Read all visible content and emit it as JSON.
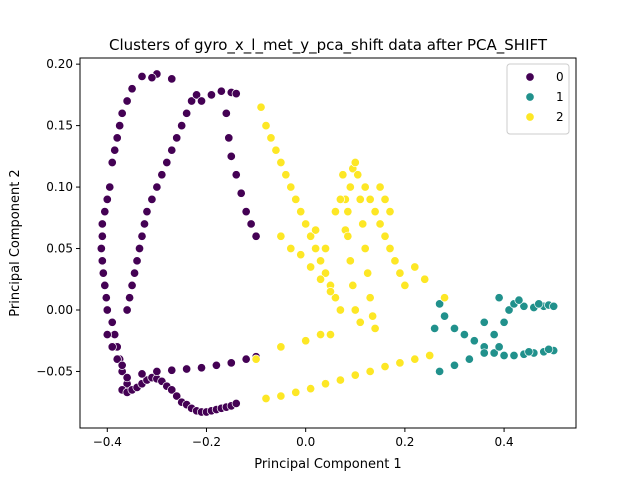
{
  "chart_data": {
    "type": "scatter",
    "title": "Clusters of gyro_x_l_met_y_pca_shift data after PCA_SHIFT",
    "xlabel": "Principal Component 1",
    "ylabel": "Principal Component 2",
    "xlim": [
      -0.455,
      0.545
    ],
    "ylim": [
      -0.096,
      0.205
    ],
    "xticks": [
      -0.4,
      -0.2,
      0.0,
      0.2,
      0.4
    ],
    "xtick_labels": [
      "−0.4",
      "−0.2",
      "0.0",
      "0.2",
      "0.4"
    ],
    "yticks": [
      -0.05,
      0.0,
      0.05,
      0.1,
      0.15,
      0.2
    ],
    "ytick_labels": [
      "−0.05",
      "0.00",
      "0.05",
      "0.10",
      "0.15",
      "0.20"
    ],
    "grid": false,
    "legend": {
      "position": "top-right"
    },
    "series": [
      {
        "name": "0",
        "color": "#440154",
        "points": [
          [
            -0.33,
            0.19
          ],
          [
            -0.3,
            0.192
          ],
          [
            -0.27,
            0.188
          ],
          [
            -0.31,
            0.189
          ],
          [
            -0.35,
            0.18
          ],
          [
            -0.36,
            0.17
          ],
          [
            -0.37,
            0.16
          ],
          [
            -0.375,
            0.15
          ],
          [
            -0.38,
            0.14
          ],
          [
            -0.385,
            0.13
          ],
          [
            -0.39,
            0.12
          ],
          [
            -0.395,
            0.1
          ],
          [
            -0.4,
            0.09
          ],
          [
            -0.405,
            0.08
          ],
          [
            -0.41,
            0.07
          ],
          [
            -0.41,
            0.06
          ],
          [
            -0.412,
            0.05
          ],
          [
            -0.41,
            0.04
          ],
          [
            -0.408,
            0.03
          ],
          [
            -0.405,
            0.02
          ],
          [
            -0.402,
            0.01
          ],
          [
            -0.4,
            0.0
          ],
          [
            -0.39,
            -0.01
          ],
          [
            -0.385,
            -0.02
          ],
          [
            -0.38,
            -0.03
          ],
          [
            -0.375,
            -0.04
          ],
          [
            -0.37,
            -0.05
          ],
          [
            -0.36,
            -0.06
          ],
          [
            -0.37,
            -0.065
          ],
          [
            -0.36,
            -0.067
          ],
          [
            -0.35,
            -0.065
          ],
          [
            -0.34,
            -0.063
          ],
          [
            -0.33,
            -0.06
          ],
          [
            -0.32,
            -0.057
          ],
          [
            -0.31,
            -0.055
          ],
          [
            -0.3,
            -0.056
          ],
          [
            -0.29,
            -0.058
          ],
          [
            -0.28,
            -0.062
          ],
          [
            -0.27,
            -0.065
          ],
          [
            -0.26,
            -0.07
          ],
          [
            -0.25,
            -0.075
          ],
          [
            -0.24,
            -0.077
          ],
          [
            -0.23,
            -0.08
          ],
          [
            -0.22,
            -0.082
          ],
          [
            -0.21,
            -0.083
          ],
          [
            -0.2,
            -0.083
          ],
          [
            -0.19,
            -0.082
          ],
          [
            -0.18,
            -0.081
          ],
          [
            -0.17,
            -0.08
          ],
          [
            -0.16,
            -0.079
          ],
          [
            -0.15,
            -0.078
          ],
          [
            -0.14,
            -0.076
          ],
          [
            -0.36,
            -0.055
          ],
          [
            -0.33,
            -0.052
          ],
          [
            -0.3,
            -0.05
          ],
          [
            -0.27,
            -0.049
          ],
          [
            -0.24,
            -0.048
          ],
          [
            -0.21,
            -0.047
          ],
          [
            -0.18,
            -0.045
          ],
          [
            -0.15,
            -0.043
          ],
          [
            -0.12,
            -0.04
          ],
          [
            -0.1,
            -0.038
          ],
          [
            -0.36,
            0.0
          ],
          [
            -0.355,
            0.01
          ],
          [
            -0.35,
            0.02
          ],
          [
            -0.345,
            0.03
          ],
          [
            -0.34,
            0.04
          ],
          [
            -0.335,
            0.05
          ],
          [
            -0.33,
            0.06
          ],
          [
            -0.325,
            0.07
          ],
          [
            -0.32,
            0.08
          ],
          [
            -0.31,
            0.09
          ],
          [
            -0.3,
            0.1
          ],
          [
            -0.29,
            0.11
          ],
          [
            -0.28,
            0.12
          ],
          [
            -0.27,
            0.13
          ],
          [
            -0.26,
            0.14
          ],
          [
            -0.25,
            0.15
          ],
          [
            -0.24,
            0.16
          ],
          [
            -0.23,
            0.17
          ],
          [
            -0.22,
            0.175
          ],
          [
            -0.21,
            0.17
          ],
          [
            -0.19,
            0.175
          ],
          [
            -0.17,
            0.178
          ],
          [
            -0.15,
            0.177
          ],
          [
            -0.14,
            0.176
          ],
          [
            -0.16,
            0.16
          ],
          [
            -0.155,
            0.14
          ],
          [
            -0.15,
            0.125
          ],
          [
            -0.14,
            0.11
          ],
          [
            -0.13,
            0.095
          ],
          [
            -0.12,
            0.08
          ],
          [
            -0.11,
            0.07
          ],
          [
            -0.1,
            0.06
          ],
          [
            -0.4,
            -0.02
          ],
          [
            -0.39,
            -0.03
          ],
          [
            -0.38,
            -0.04
          ],
          [
            -0.37,
            -0.045
          ]
        ]
      },
      {
        "name": "1",
        "color": "#21918c",
        "points": [
          [
            0.27,
            0.005
          ],
          [
            0.28,
            -0.005
          ],
          [
            0.3,
            -0.015
          ],
          [
            0.32,
            -0.02
          ],
          [
            0.34,
            -0.025
          ],
          [
            0.36,
            -0.03
          ],
          [
            0.38,
            -0.035
          ],
          [
            0.4,
            -0.037
          ],
          [
            0.42,
            -0.037
          ],
          [
            0.44,
            -0.036
          ],
          [
            0.46,
            -0.035
          ],
          [
            0.48,
            -0.034
          ],
          [
            0.5,
            -0.033
          ],
          [
            0.27,
            -0.05
          ],
          [
            0.3,
            -0.045
          ],
          [
            0.33,
            -0.04
          ],
          [
            0.36,
            -0.035
          ],
          [
            0.39,
            -0.03
          ],
          [
            0.36,
            -0.01
          ],
          [
            0.38,
            -0.02
          ],
          [
            0.4,
            -0.01
          ],
          [
            0.41,
            0.0
          ],
          [
            0.42,
            0.005
          ],
          [
            0.44,
            0.003
          ],
          [
            0.46,
            0.002
          ],
          [
            0.48,
            0.003
          ],
          [
            0.49,
            0.004
          ],
          [
            0.5,
            0.003
          ],
          [
            0.39,
            0.01
          ],
          [
            0.43,
            0.008
          ],
          [
            0.47,
            0.005
          ],
          [
            0.26,
            -0.015
          ],
          [
            0.45,
            -0.034
          ],
          [
            0.49,
            -0.032
          ]
        ]
      },
      {
        "name": "2",
        "color": "#fde725",
        "points": [
          [
            -0.09,
            0.165
          ],
          [
            -0.08,
            0.15
          ],
          [
            -0.07,
            0.14
          ],
          [
            -0.06,
            0.13
          ],
          [
            -0.05,
            0.12
          ],
          [
            -0.04,
            0.11
          ],
          [
            -0.03,
            0.1
          ],
          [
            -0.02,
            0.09
          ],
          [
            -0.01,
            0.08
          ],
          [
            0.0,
            0.07
          ],
          [
            0.01,
            0.06
          ],
          [
            0.02,
            0.05
          ],
          [
            0.03,
            0.04
          ],
          [
            0.04,
            0.03
          ],
          [
            0.05,
            0.02
          ],
          [
            0.06,
            0.01
          ],
          [
            0.07,
            0.0
          ],
          [
            0.08,
            0.065
          ],
          [
            0.085,
            0.08
          ],
          [
            0.09,
            0.1
          ],
          [
            0.095,
            0.115
          ],
          [
            0.1,
            0.12
          ],
          [
            0.105,
            0.11
          ],
          [
            0.11,
            0.09
          ],
          [
            0.115,
            0.07
          ],
          [
            0.12,
            0.05
          ],
          [
            0.125,
            0.03
          ],
          [
            0.13,
            0.01
          ],
          [
            0.135,
            -0.005
          ],
          [
            0.14,
            -0.015
          ],
          [
            0.075,
            0.11
          ],
          [
            0.08,
            0.09
          ],
          [
            0.085,
            0.06
          ],
          [
            0.09,
            0.04
          ],
          [
            0.095,
            0.02
          ],
          [
            0.1,
            0.0
          ],
          [
            0.11,
            -0.01
          ],
          [
            0.12,
            0.1
          ],
          [
            0.13,
            0.09
          ],
          [
            0.14,
            0.08
          ],
          [
            0.15,
            0.07
          ],
          [
            0.16,
            0.06
          ],
          [
            0.17,
            0.05
          ],
          [
            0.18,
            0.04
          ],
          [
            0.19,
            0.03
          ],
          [
            0.2,
            0.02
          ],
          [
            -0.05,
            0.06
          ],
          [
            -0.03,
            0.05
          ],
          [
            -0.01,
            0.045
          ],
          [
            0.01,
            0.035
          ],
          [
            0.03,
            0.025
          ],
          [
            0.05,
            0.015
          ],
          [
            -0.1,
            -0.04
          ],
          [
            -0.05,
            -0.03
          ],
          [
            0.0,
            -0.025
          ],
          [
            0.03,
            -0.02
          ],
          [
            0.05,
            -0.02
          ],
          [
            -0.08,
            -0.072
          ],
          [
            -0.05,
            -0.07
          ],
          [
            -0.02,
            -0.067
          ],
          [
            0.01,
            -0.064
          ],
          [
            0.04,
            -0.06
          ],
          [
            0.07,
            -0.057
          ],
          [
            0.1,
            -0.053
          ],
          [
            0.13,
            -0.05
          ],
          [
            0.16,
            -0.046
          ],
          [
            0.19,
            -0.043
          ],
          [
            0.22,
            -0.04
          ],
          [
            0.25,
            -0.037
          ],
          [
            0.28,
            0.01
          ],
          [
            0.22,
            0.035
          ],
          [
            0.24,
            0.025
          ],
          [
            0.15,
            0.1
          ],
          [
            0.16,
            0.09
          ],
          [
            0.17,
            0.08
          ],
          [
            0.06,
            0.08
          ],
          [
            0.07,
            0.09
          ],
          [
            0.04,
            0.05
          ],
          [
            0.02,
            0.065
          ]
        ]
      }
    ]
  }
}
